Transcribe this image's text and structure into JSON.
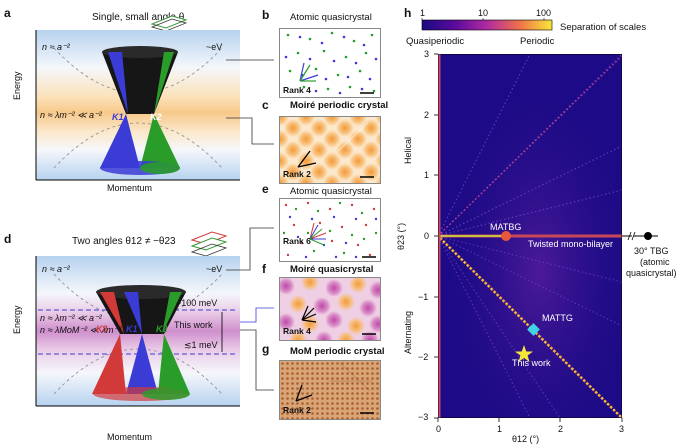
{
  "panels": {
    "a": {
      "letter": "a",
      "title": "Single, small angle θ",
      "n_top": "n ≈ a⁻²",
      "ev": "~eV",
      "n_mid": "n ≈ λm⁻² ≪ a⁻²",
      "k1": "K1",
      "k2": "K2",
      "ylabel": "Energy",
      "xlabel": "Momentum"
    },
    "b": {
      "letter": "b",
      "title": "Atomic quasicrystal",
      "rank": "Rank 4"
    },
    "c": {
      "letter": "c",
      "title": "Moiré periodic crystal",
      "rank": "Rank 2"
    },
    "d": {
      "letter": "d",
      "title": "Two angles θ12 ≠ −θ23",
      "n_top": "n ≈ a⁻²",
      "ev": "~eV",
      "n_mid1": "n ≈ λm⁻² ≪ a⁻²",
      "n_mid2": "n ≈ λMoM⁻² ≪ λm⁻²",
      "mev100": "~100 meV",
      "this_work": "This work",
      "mev1": "≲1 meV",
      "k3": "K3",
      "k1": "K1",
      "k2": "K2",
      "ylabel": "Energy",
      "xlabel": "Momentum"
    },
    "e": {
      "letter": "e",
      "title": "Atomic quasicrystal",
      "rank": "Rank 6"
    },
    "f": {
      "letter": "f",
      "title": "Moiré quasicrystal",
      "rank": "Rank 4"
    },
    "g": {
      "letter": "g",
      "title": "MoM periodic crystal",
      "rank": "Rank 2"
    },
    "h": {
      "letter": "h",
      "colorbar_ticks": [
        "1",
        "10",
        "100"
      ],
      "colorbar_label": "Separation of scales",
      "quasiperiodic": "Quasiperiodic",
      "periodic": "Periodic",
      "helical": "Helical",
      "alternating": "Alternating",
      "ylabel": "θ23 (°)",
      "xlabel": "θ12 (°)",
      "yticks": [
        "3",
        "2",
        "1",
        "0",
        "−1",
        "−2",
        "−3"
      ],
      "xticks": [
        "0",
        "1",
        "2",
        "3"
      ],
      "matbg": "MATBG",
      "mattg": "MATTG",
      "twisted": "Twisted mono-bilayer",
      "thiswork": "This work",
      "tbg30_1": "30° TBG",
      "tbg30_2": "(atomic",
      "tbg30_3": "quasicrystal)"
    }
  },
  "colors": {
    "matbg_marker": "#e8573a",
    "mattg_marker": "#3fd3e8",
    "thiswork_marker": "#f3e83a",
    "k1": "#3b3bd6",
    "k2": "#2a9c2a",
    "k3": "#d23a3a"
  }
}
